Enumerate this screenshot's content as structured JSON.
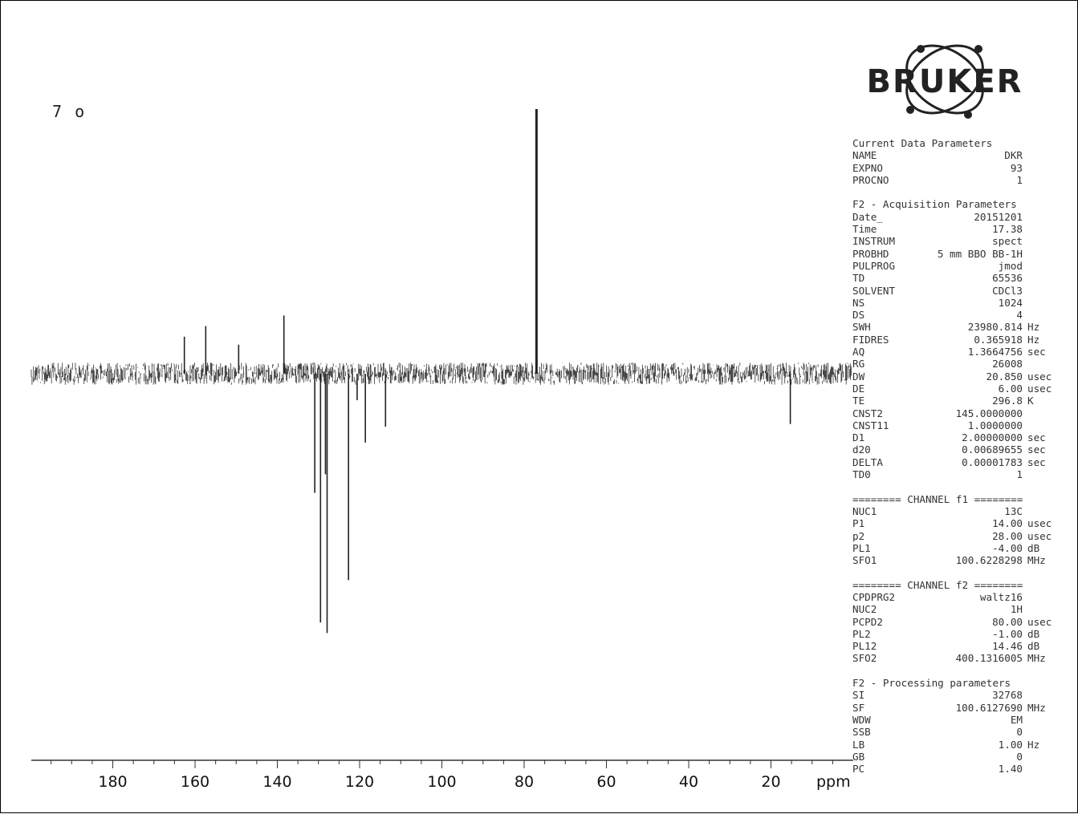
{
  "sample_label": "7 o",
  "logo": {
    "text": "BRUKER",
    "icon": "atom-orbit-icon"
  },
  "chart_data": {
    "type": "line",
    "title": "",
    "xlabel": "ppm",
    "ylabel": "",
    "x_reversed": true,
    "xlim": [
      200,
      0
    ],
    "x_ticks": [
      180,
      160,
      140,
      120,
      100,
      80,
      60,
      40,
      20
    ],
    "x_tick_labels": [
      "180",
      "160",
      "140",
      "120",
      "100",
      "80",
      "60",
      "40",
      "20"
    ],
    "ylim": [
      -1.0,
      1.0
    ],
    "grid": false,
    "noise_level": 0.07,
    "peaks": [
      {
        "ppm": 162.6,
        "intensity": 0.14
      },
      {
        "ppm": 157.4,
        "intensity": 0.18
      },
      {
        "ppm": 149.4,
        "intensity": 0.11
      },
      {
        "ppm": 138.4,
        "intensity": 0.22
      },
      {
        "ppm": 130.9,
        "intensity": -0.45
      },
      {
        "ppm": 129.5,
        "intensity": -0.94
      },
      {
        "ppm": 128.3,
        "intensity": -0.38
      },
      {
        "ppm": 127.9,
        "intensity": -0.98
      },
      {
        "ppm": 122.7,
        "intensity": -0.78
      },
      {
        "ppm": 120.6,
        "intensity": -0.1
      },
      {
        "ppm": 118.6,
        "intensity": -0.26
      },
      {
        "ppm": 113.7,
        "intensity": -0.2
      },
      {
        "ppm": 77.0,
        "intensity": 1.0
      },
      {
        "ppm": 15.3,
        "intensity": -0.19
      }
    ]
  },
  "parameters": {
    "sections": [
      {
        "title": "Current Data Parameters",
        "rows": [
          {
            "key": "NAME",
            "value": "DKR",
            "unit": ""
          },
          {
            "key": "EXPNO",
            "value": "93",
            "unit": ""
          },
          {
            "key": "PROCNO",
            "value": "1",
            "unit": ""
          }
        ]
      },
      {
        "title": "F2 - Acquisition Parameters",
        "rows": [
          {
            "key": "Date_",
            "value": "20151201",
            "unit": ""
          },
          {
            "key": "Time",
            "value": "17.38",
            "unit": ""
          },
          {
            "key": "INSTRUM",
            "value": "spect",
            "unit": ""
          },
          {
            "key": "PROBHD",
            "value": "5 mm BBO BB-1H",
            "unit": ""
          },
          {
            "key": "PULPROG",
            "value": "jmod",
            "unit": ""
          },
          {
            "key": "TD",
            "value": "65536",
            "unit": ""
          },
          {
            "key": "SOLVENT",
            "value": "CDCl3",
            "unit": ""
          },
          {
            "key": "NS",
            "value": "1024",
            "unit": ""
          },
          {
            "key": "DS",
            "value": "4",
            "unit": ""
          },
          {
            "key": "SWH",
            "value": "23980.814",
            "unit": "Hz"
          },
          {
            "key": "FIDRES",
            "value": "0.365918",
            "unit": "Hz"
          },
          {
            "key": "AQ",
            "value": "1.3664756",
            "unit": "sec"
          },
          {
            "key": "RG",
            "value": "26008",
            "unit": ""
          },
          {
            "key": "DW",
            "value": "20.850",
            "unit": "usec"
          },
          {
            "key": "DE",
            "value": "6.00",
            "unit": "usec"
          },
          {
            "key": "TE",
            "value": "296.8",
            "unit": "K"
          },
          {
            "key": "CNST2",
            "value": "145.0000000",
            "unit": ""
          },
          {
            "key": "CNST11",
            "value": "1.0000000",
            "unit": ""
          },
          {
            "key": "D1",
            "value": "2.00000000",
            "unit": "sec"
          },
          {
            "key": "d20",
            "value": "0.00689655",
            "unit": "sec"
          },
          {
            "key": "DELTA",
            "value": "0.00001783",
            "unit": "sec"
          },
          {
            "key": "TD0",
            "value": "1",
            "unit": ""
          }
        ]
      },
      {
        "title": "======== CHANNEL f1 ========",
        "rows": [
          {
            "key": "NUC1",
            "value": "13C",
            "unit": ""
          },
          {
            "key": "P1",
            "value": "14.00",
            "unit": "usec"
          },
          {
            "key": "p2",
            "value": "28.00",
            "unit": "usec"
          },
          {
            "key": "PL1",
            "value": "-4.00",
            "unit": "dB"
          },
          {
            "key": "SFO1",
            "value": "100.6228298",
            "unit": "MHz"
          }
        ]
      },
      {
        "title": "======== CHANNEL f2 ========",
        "rows": [
          {
            "key": "CPDPRG2",
            "value": "waltz16",
            "unit": ""
          },
          {
            "key": "NUC2",
            "value": "1H",
            "unit": ""
          },
          {
            "key": "PCPD2",
            "value": "80.00",
            "unit": "usec"
          },
          {
            "key": "PL2",
            "value": "-1.00",
            "unit": "dB"
          },
          {
            "key": "PL12",
            "value": "14.46",
            "unit": "dB"
          },
          {
            "key": "SFO2",
            "value": "400.1316005",
            "unit": "MHz"
          }
        ]
      },
      {
        "title": "F2 - Processing parameters",
        "rows": [
          {
            "key": "SI",
            "value": "32768",
            "unit": ""
          },
          {
            "key": "SF",
            "value": "100.6127690",
            "unit": "MHz"
          },
          {
            "key": "WDW",
            "value": "EM",
            "unit": ""
          },
          {
            "key": "SSB",
            "value": "0",
            "unit": ""
          },
          {
            "key": "LB",
            "value": "1.00",
            "unit": "Hz"
          },
          {
            "key": "GB",
            "value": "0",
            "unit": ""
          },
          {
            "key": "PC",
            "value": "1.40",
            "unit": ""
          }
        ]
      }
    ]
  }
}
